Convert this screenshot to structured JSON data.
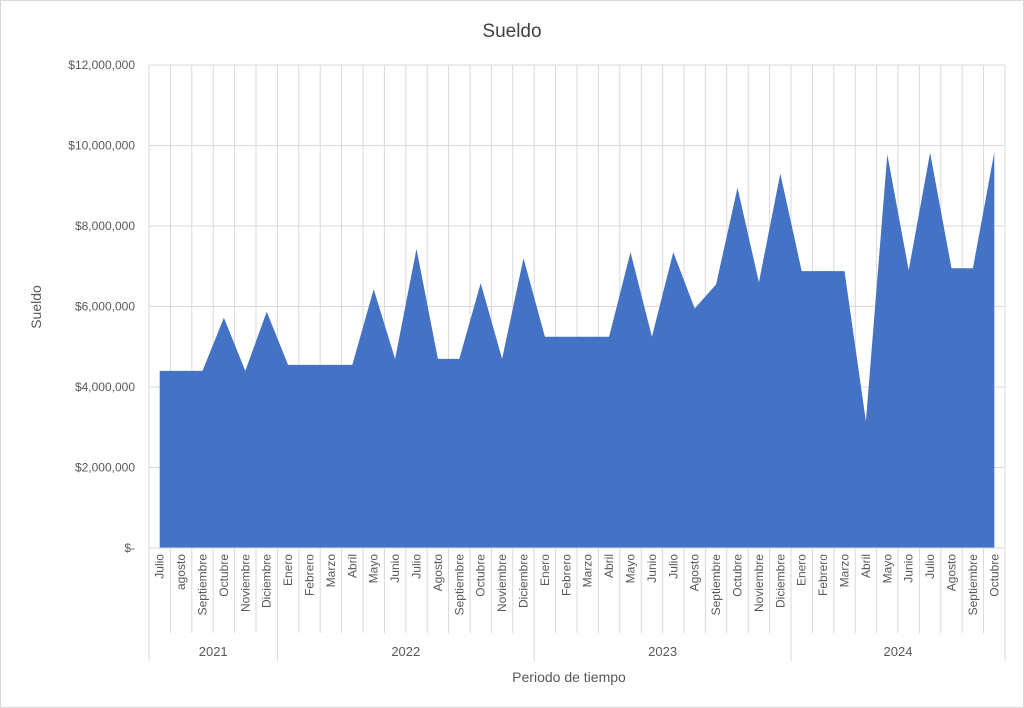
{
  "chart_data": {
    "type": "area",
    "title": "Sueldo",
    "xlabel": "Periodo de tiempo",
    "ylabel": "Sueldo",
    "ylim": [
      0,
      12000000
    ],
    "yticks": [
      0,
      2000000,
      4000000,
      6000000,
      8000000,
      10000000,
      12000000
    ],
    "ytick_labels": [
      "$-",
      "$2,000,000",
      "$4,000,000",
      "$6,000,000",
      "$8,000,000",
      "$10,000,000",
      "$12,000,000"
    ],
    "grid": true,
    "legend": "none",
    "color": "#4472C4",
    "groups": [
      {
        "year": "2021",
        "months": [
          "Julio",
          "agosto",
          "Septiembre",
          "Octubre",
          "Noviembre",
          "Diciembre"
        ]
      },
      {
        "year": "2022",
        "months": [
          "Enero",
          "Febrero",
          "Marzo",
          "Abril",
          "Mayo",
          "Junio",
          "Julio",
          "Agosto",
          "Septiembre",
          "Octubre",
          "Noviembre",
          "Diciembre"
        ]
      },
      {
        "year": "2023",
        "months": [
          "Enero",
          "Febrero",
          "Marzo",
          "Abril",
          "Mayo",
          "Junio",
          "Julio",
          "Agosto",
          "Septiembre",
          "Octubre",
          "Noviembre",
          "Diciembre"
        ]
      },
      {
        "year": "2024",
        "months": [
          "Enero",
          "Febrero",
          "Marzo",
          "Abril",
          "Mayo",
          "Junio",
          "Julio",
          "Agosto",
          "Septiembre",
          "Octubre"
        ]
      }
    ],
    "values": [
      4400000,
      4400000,
      4400000,
      5720000,
      4400000,
      5870000,
      4550000,
      4550000,
      4550000,
      4550000,
      6430000,
      4700000,
      7430000,
      4700000,
      4700000,
      6580000,
      4700000,
      7200000,
      5250000,
      5250000,
      5250000,
      5250000,
      7350000,
      5250000,
      7350000,
      5950000,
      6550000,
      8950000,
      6600000,
      9300000,
      6880000,
      6880000,
      6880000,
      3150000,
      9780000,
      6900000,
      9820000,
      6950000,
      6950000,
      9830000
    ]
  }
}
